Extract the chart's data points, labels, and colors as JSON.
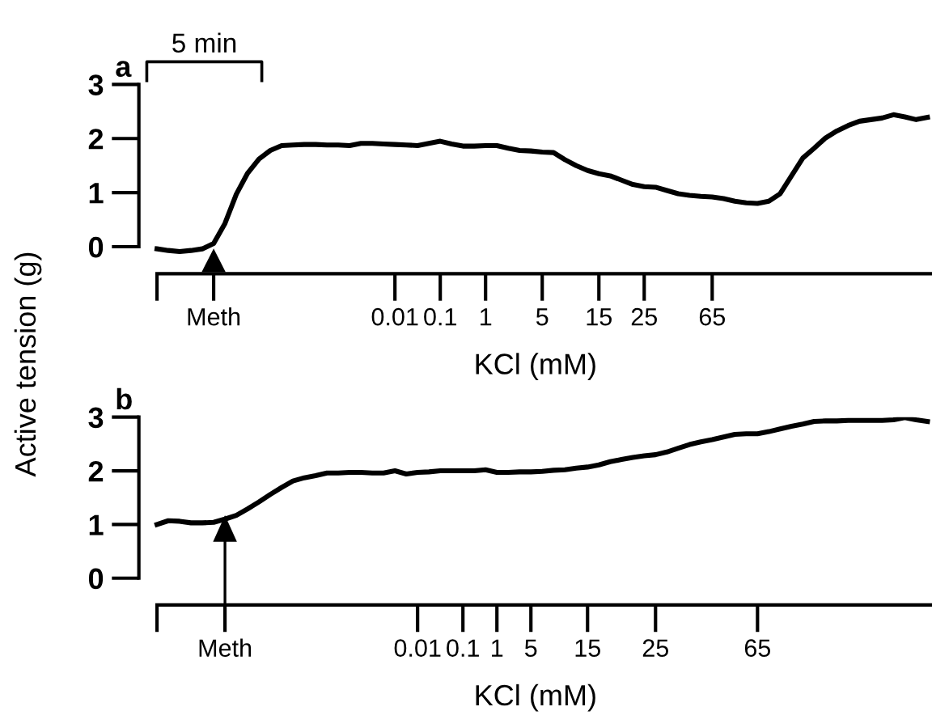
{
  "chart_data": [
    {
      "type": "line",
      "title": "a",
      "ylabel": "Active tension (g)",
      "xlabel": "KCl (mM)",
      "annotations": [
        "5 min"
      ],
      "ylim": [
        -0.5,
        3
      ],
      "yticks": [
        0,
        1,
        2,
        3
      ],
      "categories": [
        null,
        null,
        null,
        null,
        null,
        "Meth",
        null,
        null,
        null,
        null,
        null,
        null,
        null,
        null,
        null,
        null,
        null,
        null,
        null,
        null,
        null,
        "0.01",
        null,
        null,
        null,
        "0.1",
        null,
        null,
        null,
        "1",
        null,
        null,
        null,
        null,
        "5",
        null,
        null,
        null,
        null,
        "15",
        null,
        null,
        null,
        "25",
        null,
        null,
        null,
        null,
        null,
        "65",
        null,
        null,
        null,
        null,
        null,
        null,
        null,
        null,
        null,
        null,
        null,
        null,
        null,
        null,
        null,
        null,
        null,
        null,
        null
      ],
      "grid": false,
      "legend": false,
      "marker": "none",
      "line_style": "solid",
      "series": [
        {
          "color": "#000000",
          "values": [
            -0.04,
            -0.07,
            -0.09,
            -0.07,
            -0.04,
            0.06,
            0.43,
            0.97,
            1.36,
            1.62,
            1.78,
            1.87,
            1.88,
            1.89,
            1.89,
            1.88,
            1.88,
            1.87,
            1.91,
            1.91,
            1.9,
            1.89,
            1.88,
            1.87,
            1.91,
            1.95,
            1.9,
            1.86,
            1.86,
            1.87,
            1.87,
            1.82,
            1.78,
            1.77,
            1.75,
            1.74,
            1.61,
            1.5,
            1.41,
            1.35,
            1.31,
            1.23,
            1.15,
            1.11,
            1.1,
            1.04,
            0.98,
            0.95,
            0.93,
            0.92,
            0.89,
            0.84,
            0.81,
            0.8,
            0.84,
            0.98,
            1.31,
            1.64,
            1.82,
            2.01,
            2.14,
            2.24,
            2.32,
            2.35,
            2.38,
            2.44,
            2.4,
            2.35,
            2.39
          ]
        }
      ]
    },
    {
      "type": "line",
      "title": "b",
      "xlabel": "KCl (mM)",
      "ylim": [
        -0.5,
        3
      ],
      "yticks": [
        0,
        1,
        2,
        3
      ],
      "categories": [
        null,
        null,
        null,
        null,
        null,
        null,
        "Meth",
        null,
        null,
        null,
        null,
        null,
        null,
        null,
        null,
        null,
        null,
        null,
        null,
        null,
        null,
        null,
        null,
        "0.01",
        null,
        null,
        null,
        "0.1",
        null,
        null,
        "1",
        null,
        null,
        "5",
        null,
        null,
        null,
        null,
        "15",
        null,
        null,
        null,
        null,
        null,
        "25",
        null,
        null,
        null,
        null,
        null,
        null,
        null,
        null,
        "65",
        null,
        null,
        null,
        null,
        null,
        null,
        null,
        null,
        null,
        null,
        null,
        null,
        null,
        null,
        null
      ],
      "grid": false,
      "legend": false,
      "marker": "none",
      "line_style": "solid",
      "series": [
        {
          "color": "#000000",
          "values": [
            1.0,
            1.07,
            1.06,
            1.03,
            1.03,
            1.04,
            1.1,
            1.17,
            1.29,
            1.42,
            1.56,
            1.69,
            1.81,
            1.87,
            1.91,
            1.96,
            1.96,
            1.97,
            1.97,
            1.96,
            1.96,
            2.0,
            1.94,
            1.97,
            1.98,
            2.0,
            2.0,
            2.0,
            2.0,
            2.02,
            1.97,
            1.97,
            1.98,
            1.98,
            1.99,
            2.01,
            2.02,
            2.05,
            2.07,
            2.11,
            2.17,
            2.21,
            2.25,
            2.28,
            2.3,
            2.35,
            2.42,
            2.49,
            2.54,
            2.58,
            2.63,
            2.68,
            2.69,
            2.69,
            2.73,
            2.78,
            2.83,
            2.87,
            2.92,
            2.93,
            2.93,
            2.94,
            2.94,
            2.94,
            2.94,
            2.95,
            2.99,
            2.95,
            2.92
          ]
        }
      ]
    }
  ]
}
